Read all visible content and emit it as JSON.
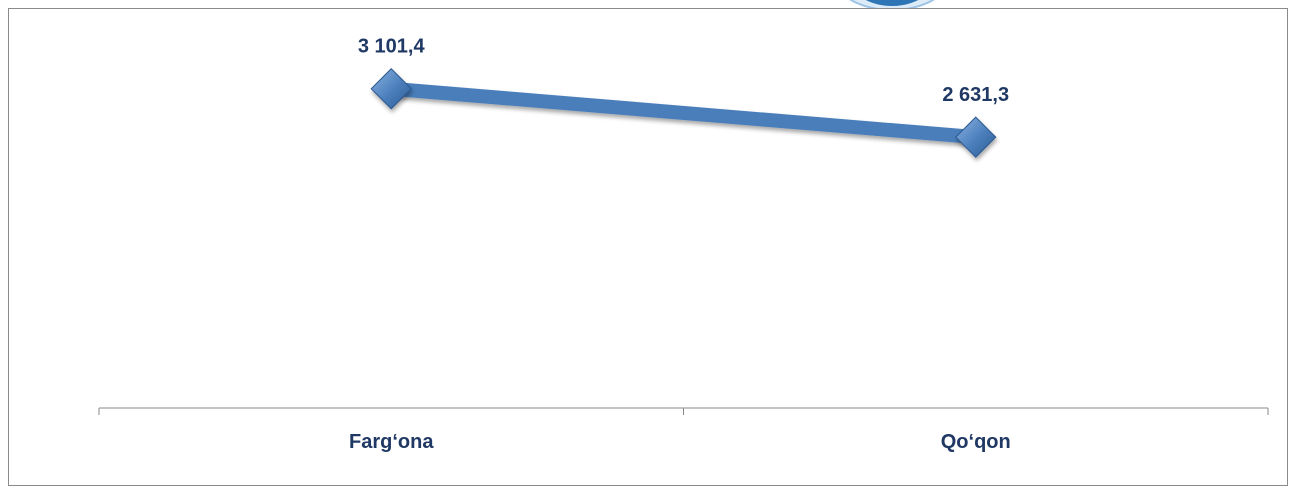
{
  "chart_data": {
    "type": "line",
    "categories": [
      "Farg‘ona",
      "Qo‘qon"
    ],
    "series": [
      {
        "values": [
          3101.4,
          2631.3
        ],
        "data_labels": [
          "3 101,4",
          "2 631,3"
        ],
        "color": "#4a7ebb",
        "marker": "diamond"
      }
    ],
    "ylim": [
      0,
      3400
    ],
    "xlabel": "",
    "ylabel": "",
    "grid": false,
    "legend": "none",
    "label_color": "#1f3864"
  }
}
